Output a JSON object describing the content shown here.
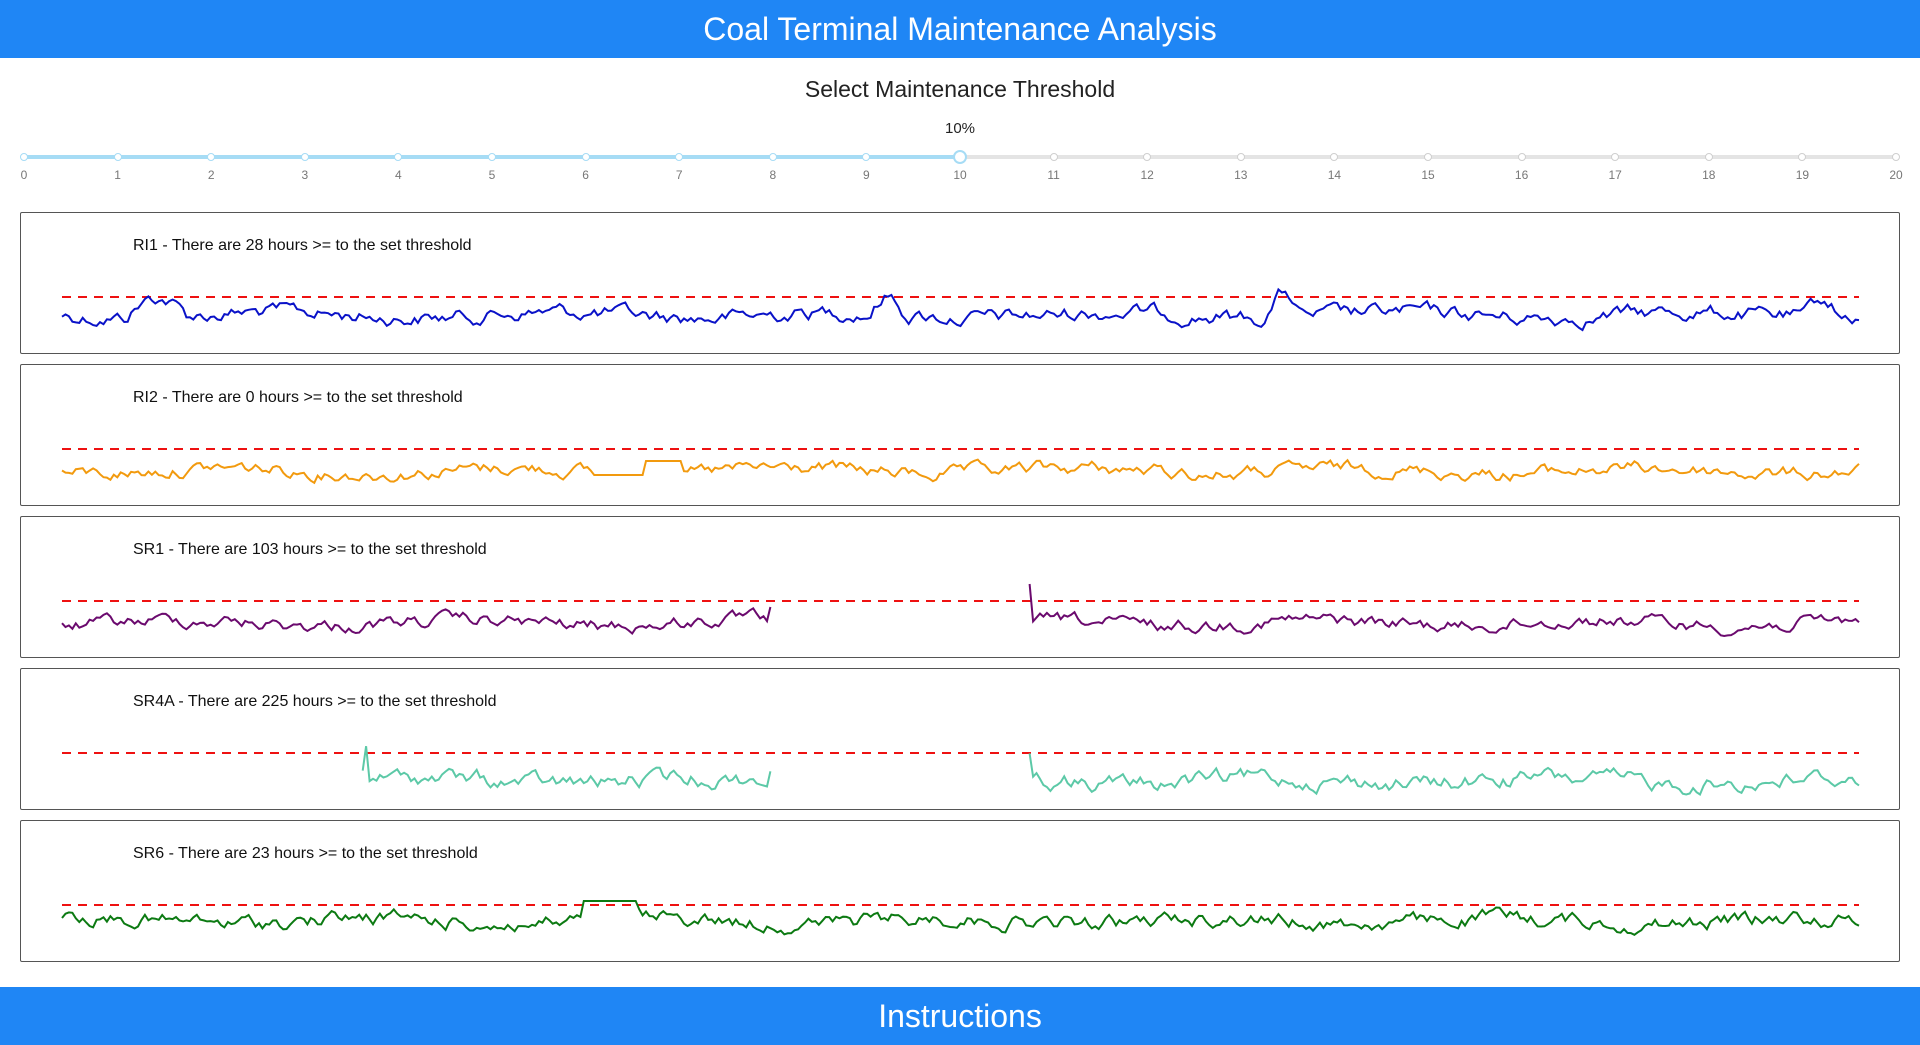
{
  "header": {
    "title": "Coal Terminal Maintenance Analysis"
  },
  "threshold": {
    "title": "Select Maintenance Threshold",
    "value_label": "10%",
    "value": 10,
    "min": 0,
    "max": 20,
    "marks": [
      "0",
      "1",
      "2",
      "3",
      "4",
      "5",
      "6",
      "7",
      "8",
      "9",
      "10",
      "11",
      "12",
      "13",
      "14",
      "15",
      "16",
      "17",
      "18",
      "19",
      "20"
    ],
    "track_color": "#a6dcf5"
  },
  "panels": [
    {
      "name": "RI1",
      "title": "RI1 - There are 28 hours >= to the set threshold",
      "color": "#0a12c8"
    },
    {
      "name": "RI2",
      "title": "RI2 - There are 0 hours >= to the set threshold",
      "color": "#f29a0e"
    },
    {
      "name": "SR1",
      "title": "SR1 - There are 103 hours >= to the set threshold",
      "color": "#6b0a6e"
    },
    {
      "name": "SR4A",
      "title": "SR4A - There are 225 hours >= to the set threshold",
      "color": "#5cc9a7"
    },
    {
      "name": "SR6",
      "title": "SR6 - There are 23 hours >= to the set threshold",
      "color": "#0c7a12"
    }
  ],
  "threshold_line_color": "#ee1111",
  "footer": {
    "label": "Instructions"
  }
}
